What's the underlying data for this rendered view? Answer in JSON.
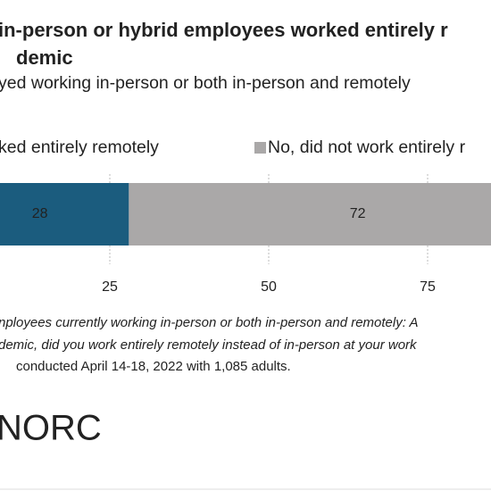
{
  "chart_data": {
    "type": "stacked-barh",
    "title": [
      "in-person or hybrid employees worked entirely r",
      "demic"
    ],
    "subtitle": "yed working in-person or both in-person and remotely",
    "categories": [
      null
    ],
    "series": [
      {
        "name": "ked entirely remotely",
        "color": "#1b5c7e",
        "values": [
          28
        ]
      },
      {
        "name": "No, did not work entirely r",
        "color": "#aaa8a8",
        "values": [
          72
        ]
      }
    ],
    "xlim": [
      0,
      100
    ],
    "xticks": [
      25,
      50,
      75
    ],
    "grid": true,
    "notes": [
      "nployees currently working in-person or both in-person and remotely: A",
      "demic, did you work entirely remotely instead of in-person at your work",
      "conducted April 14-18, 2022 with 1,085 adults."
    ],
    "logo": "NORC"
  }
}
